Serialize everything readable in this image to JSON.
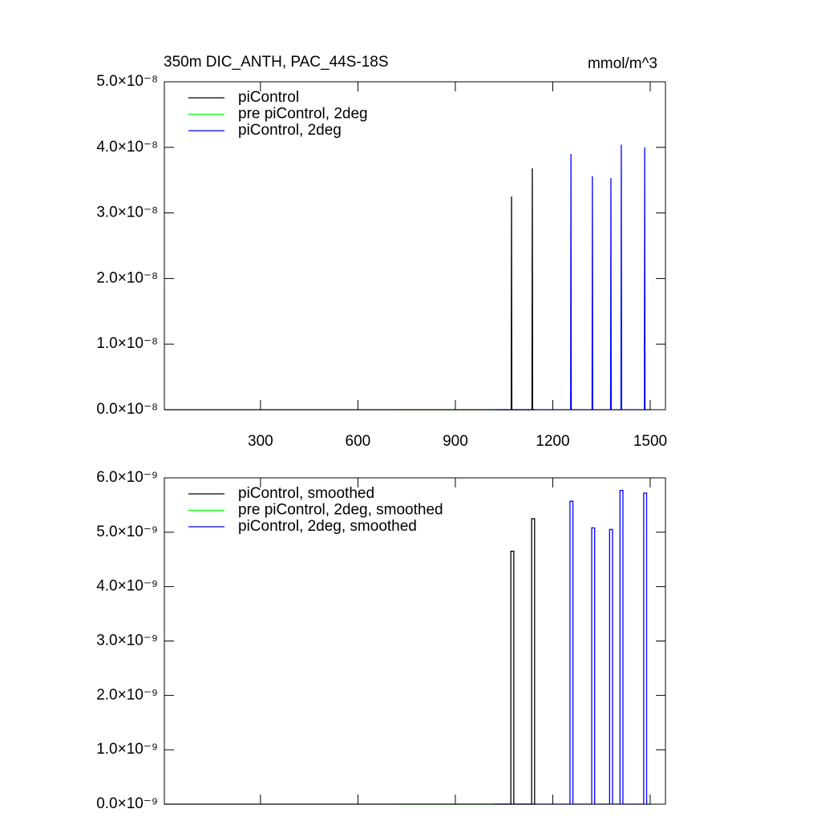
{
  "chart_data": [
    {
      "type": "line",
      "title": "350m DIC_ANTH, PAC_44S-18S",
      "units": "mmol/m^3",
      "xlim": [
        4,
        1547
      ],
      "xticks": [
        300,
        600,
        900,
        1200,
        1500
      ],
      "ylim": [
        0,
        5e-08
      ],
      "yticks": [
        {
          "value": 0,
          "label": "0.0×10⁻⁸"
        },
        {
          "value": 1e-08,
          "label": "1.0×10⁻⁸"
        },
        {
          "value": 2e-08,
          "label": "2.0×10⁻⁸"
        },
        {
          "value": 3e-08,
          "label": "3.0×10⁻⁸"
        },
        {
          "value": 4e-08,
          "label": "4.0×10⁻⁸"
        },
        {
          "value": 5e-08,
          "label": "5.0×10⁻⁸"
        }
      ],
      "series": [
        {
          "name": "piControl",
          "color": "#000000",
          "x": [
            4,
            1072,
            1073,
            1074,
            1136,
            1137,
            1138,
            1145
          ],
          "values": [
            0,
            0,
            3.25e-08,
            0,
            0,
            3.68e-08,
            0,
            0
          ]
        },
        {
          "name": "pre piControl, 2deg",
          "color": "#00ff00",
          "x": [
            720,
            1020
          ],
          "values": [
            0,
            0
          ]
        },
        {
          "name": "piControl, 2deg",
          "color": "#0000ff",
          "x": [
            1020,
            1255,
            1256,
            1257,
            1321,
            1322,
            1323,
            1378,
            1379,
            1380,
            1410,
            1411,
            1412,
            1482,
            1483,
            1484,
            1500
          ],
          "values": [
            0,
            0,
            3.9e-08,
            0,
            0,
            3.56e-08,
            0,
            0,
            3.53e-08,
            0,
            0,
            4.04e-08,
            0,
            0,
            4e-08,
            0,
            0
          ]
        }
      ]
    },
    {
      "type": "line",
      "xlim": [
        4,
        1547
      ],
      "xticks": [
        300,
        600,
        900,
        1200,
        1500
      ],
      "ylim": [
        0,
        6e-09
      ],
      "yticks": [
        {
          "value": 0,
          "label": "0.0×10⁻⁹"
        },
        {
          "value": 1e-09,
          "label": "1.0×10⁻⁹"
        },
        {
          "value": 2e-09,
          "label": "2.0×10⁻⁹"
        },
        {
          "value": 3e-09,
          "label": "3.0×10⁻⁹"
        },
        {
          "value": 4e-09,
          "label": "4.0×10⁻⁹"
        },
        {
          "value": 5e-09,
          "label": "5.0×10⁻⁹"
        },
        {
          "value": 6e-09,
          "label": "6.0×10⁻⁹"
        }
      ],
      "series": [
        {
          "name": "piControl, smoothed",
          "color": "#000000",
          "x": [
            4,
            1071,
            1071,
            1080,
            1080,
            1135,
            1135,
            1144,
            1144,
            1150
          ],
          "values": [
            0,
            0,
            4.65e-09,
            4.65e-09,
            0,
            0,
            5.25e-09,
            5.25e-09,
            0,
            0
          ]
        },
        {
          "name": "pre piControl, 2deg, smoothed",
          "color": "#00ff00",
          "x": [
            720,
            1020
          ],
          "values": [
            0,
            0
          ]
        },
        {
          "name": "piControl, 2deg, smoothed",
          "color": "#0000ff",
          "x": [
            1020,
            1253,
            1253,
            1262,
            1262,
            1320,
            1320,
            1329,
            1329,
            1375,
            1375,
            1384,
            1384,
            1407,
            1407,
            1416,
            1416,
            1480,
            1480,
            1489,
            1489,
            1500
          ],
          "values": [
            0,
            0,
            5.57e-09,
            5.57e-09,
            0,
            0,
            5.08e-09,
            5.08e-09,
            0,
            0,
            5.05e-09,
            5.05e-09,
            0,
            0,
            5.77e-09,
            5.77e-09,
            0,
            0,
            5.72e-09,
            5.72e-09,
            0,
            0
          ]
        }
      ]
    }
  ]
}
